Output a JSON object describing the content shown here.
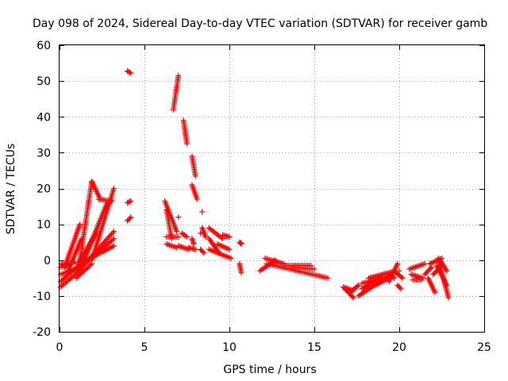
{
  "chart_data": {
    "type": "scatter",
    "title": "Day 098 of 2024, Sidereal Day-to-day VTEC variation (SDTVAR) for receiver gamb",
    "xlabel": "GPS time / hours",
    "ylabel": "SDTVAR / TECUs",
    "xlim": [
      0,
      25
    ],
    "ylim": [
      -20,
      60
    ],
    "xticks": [
      0,
      5,
      10,
      15,
      20,
      25
    ],
    "yticks": [
      -20,
      -10,
      0,
      10,
      20,
      30,
      40,
      50,
      60
    ],
    "xtick_labels": [
      "0",
      "5",
      "10",
      "15",
      "20",
      "25"
    ],
    "ytick_labels": [
      "-20",
      "-10",
      "0",
      "10",
      "20",
      "30",
      "40",
      "50",
      "60"
    ],
    "grid": true,
    "marker": "+",
    "color": "#ff0000",
    "segments": [
      {
        "x0": 0.05,
        "y0": -7.5,
        "x1": 1.3,
        "y1": -2.5
      },
      {
        "x0": 0.05,
        "y0": -6.0,
        "x1": 1.6,
        "y1": 0.5
      },
      {
        "x0": 0.05,
        "y0": -4.0,
        "x1": 1.2,
        "y1": -2.0
      },
      {
        "x0": 0.05,
        "y0": -2.0,
        "x1": 0.9,
        "y1": -0.5
      },
      {
        "x0": 0.1,
        "y0": -1.0,
        "x1": 0.4,
        "y1": -1.5
      },
      {
        "x0": 0.3,
        "y0": -2.0,
        "x1": 1.2,
        "y1": 10.0
      },
      {
        "x0": 0.5,
        "y0": -3.0,
        "x1": 1.3,
        "y1": 6.0
      },
      {
        "x0": 1.0,
        "y0": -5.0,
        "x1": 1.9,
        "y1": -1.0
      },
      {
        "x0": 1.0,
        "y0": -3.0,
        "x1": 3.2,
        "y1": 6.0
      },
      {
        "x0": 1.1,
        "y0": -1.0,
        "x1": 2.2,
        "y1": 8.0
      },
      {
        "x0": 1.2,
        "y0": 0.0,
        "x1": 1.9,
        "y1": 22.0
      },
      {
        "x0": 1.3,
        "y0": -2.0,
        "x1": 3.2,
        "y1": 8.0
      },
      {
        "x0": 1.5,
        "y0": 0.5,
        "x1": 2.8,
        "y1": 16.0
      },
      {
        "x0": 1.9,
        "y0": 22.0,
        "x1": 2.4,
        "y1": 17.0
      },
      {
        "x0": 1.9,
        "y0": 0.0,
        "x1": 3.2,
        "y1": 20.0
      },
      {
        "x0": 2.3,
        "y0": 17.0,
        "x1": 3.1,
        "y1": 16.5
      },
      {
        "x0": 2.0,
        "y0": 1.0,
        "x1": 3.2,
        "y1": 4.0
      },
      {
        "x0": 4.0,
        "y0": 52.8,
        "x1": 4.2,
        "y1": 52.2
      },
      {
        "x0": 4.0,
        "y0": 16.0,
        "x1": 4.2,
        "y1": 16.5
      },
      {
        "x0": 4.0,
        "y0": 11.0,
        "x1": 4.2,
        "y1": 12.0
      },
      {
        "x0": 6.2,
        "y0": 16.5,
        "x1": 6.9,
        "y1": 8.0
      },
      {
        "x0": 6.3,
        "y0": 14.0,
        "x1": 6.6,
        "y1": 6.0
      },
      {
        "x0": 6.3,
        "y0": 6.5,
        "x1": 7.0,
        "y1": 6.5
      },
      {
        "x0": 6.3,
        "y0": 4.5,
        "x1": 6.9,
        "y1": 3.5
      },
      {
        "x0": 6.7,
        "y0": 42.0,
        "x1": 7.0,
        "y1": 51.5
      },
      {
        "x0": 7.0,
        "y0": 4.0,
        "x1": 7.6,
        "y1": 3.0
      },
      {
        "x0": 7.2,
        "y0": 7.5,
        "x1": 7.5,
        "y1": 6.5
      },
      {
        "x0": 7.3,
        "y0": 39.0,
        "x1": 7.5,
        "y1": 32.5
      },
      {
        "x0": 7.6,
        "y0": 3.5,
        "x1": 8.0,
        "y1": 3.0
      },
      {
        "x0": 7.8,
        "y0": 29.0,
        "x1": 8.0,
        "y1": 23.5
      },
      {
        "x0": 7.8,
        "y0": 21.0,
        "x1": 8.1,
        "y1": 17.0
      },
      {
        "x0": 7.8,
        "y0": 6.0,
        "x1": 7.9,
        "y1": 4.5
      },
      {
        "x0": 8.3,
        "y0": 3.0,
        "x1": 8.5,
        "y1": 2.0
      },
      {
        "x0": 8.4,
        "y0": 9.0,
        "x1": 8.6,
        "y1": 6.5
      },
      {
        "x0": 8.8,
        "y0": 9.0,
        "x1": 9.6,
        "y1": 6.0
      },
      {
        "x0": 8.8,
        "y0": 6.0,
        "x1": 9.4,
        "y1": 2.0
      },
      {
        "x0": 8.8,
        "y0": 3.0,
        "x1": 10.1,
        "y1": 0.5
      },
      {
        "x0": 9.3,
        "y0": 4.5,
        "x1": 10.0,
        "y1": 3.0
      },
      {
        "x0": 9.6,
        "y0": 7.0,
        "x1": 10.0,
        "y1": 6.5
      },
      {
        "x0": 10.6,
        "y0": 5.0,
        "x1": 10.7,
        "y1": 4.5
      },
      {
        "x0": 10.6,
        "y0": -1.0,
        "x1": 10.7,
        "y1": -3.5
      },
      {
        "x0": 11.8,
        "y0": -3.0,
        "x1": 12.7,
        "y1": 0.0
      },
      {
        "x0": 12.1,
        "y0": 0.5,
        "x1": 13.2,
        "y1": -1.0
      },
      {
        "x0": 12.2,
        "y0": -1.0,
        "x1": 15.8,
        "y1": -5.0
      },
      {
        "x0": 13.3,
        "y0": -1.5,
        "x1": 14.8,
        "y1": -1.5
      },
      {
        "x0": 13.7,
        "y0": -2.0,
        "x1": 15.0,
        "y1": -2.5
      },
      {
        "x0": 16.7,
        "y0": -7.5,
        "x1": 17.3,
        "y1": -8.5
      },
      {
        "x0": 16.8,
        "y0": -8.0,
        "x1": 17.3,
        "y1": -10.5
      },
      {
        "x0": 17.1,
        "y0": -9.0,
        "x1": 17.6,
        "y1": -7.0
      },
      {
        "x0": 17.6,
        "y0": -10.0,
        "x1": 19.5,
        "y1": -4.0
      },
      {
        "x0": 17.8,
        "y0": -8.0,
        "x1": 18.5,
        "y1": -6.0
      },
      {
        "x0": 17.8,
        "y0": -6.5,
        "x1": 19.0,
        "y1": -5.0
      },
      {
        "x0": 18.2,
        "y0": -5.0,
        "x1": 19.8,
        "y1": -3.0
      },
      {
        "x0": 18.6,
        "y0": -7.0,
        "x1": 19.6,
        "y1": -4.5
      },
      {
        "x0": 19.4,
        "y0": -6.0,
        "x1": 19.9,
        "y1": -1.0
      },
      {
        "x0": 19.5,
        "y0": -4.0,
        "x1": 19.7,
        "y1": -5.0
      },
      {
        "x0": 19.8,
        "y0": -3.5,
        "x1": 20.2,
        "y1": -5.0
      },
      {
        "x0": 19.9,
        "y0": -7.0,
        "x1": 20.1,
        "y1": -8.0
      },
      {
        "x0": 20.6,
        "y0": -2.5,
        "x1": 21.5,
        "y1": -1.0
      },
      {
        "x0": 20.7,
        "y0": -4.0,
        "x1": 21.4,
        "y1": -5.0
      },
      {
        "x0": 20.8,
        "y0": -5.5,
        "x1": 21.3,
        "y1": -5.5
      },
      {
        "x0": 21.5,
        "y0": -4.0,
        "x1": 21.9,
        "y1": -2.0
      },
      {
        "x0": 21.7,
        "y0": -5.0,
        "x1": 22.1,
        "y1": -9.0
      },
      {
        "x0": 21.8,
        "y0": -1.0,
        "x1": 22.5,
        "y1": 0.5
      },
      {
        "x0": 22.0,
        "y0": -4.0,
        "x1": 22.5,
        "y1": -1.5
      },
      {
        "x0": 22.2,
        "y0": -1.5,
        "x1": 22.8,
        "y1": -7.0
      },
      {
        "x0": 22.3,
        "y0": 0.5,
        "x1": 22.9,
        "y1": -10.5
      },
      {
        "x0": 22.4,
        "y0": 0.0,
        "x1": 22.8,
        "y1": -3.0
      }
    ],
    "points": [
      {
        "x": 7.0,
        "y": 12.0
      },
      {
        "x": 8.4,
        "y": 13.5
      },
      {
        "x": 8.3,
        "y": 7.5
      },
      {
        "x": 7.9,
        "y": 4.5
      },
      {
        "x": 10.7,
        "y": 4.8
      },
      {
        "x": 20.0,
        "y": -3.0
      }
    ]
  }
}
